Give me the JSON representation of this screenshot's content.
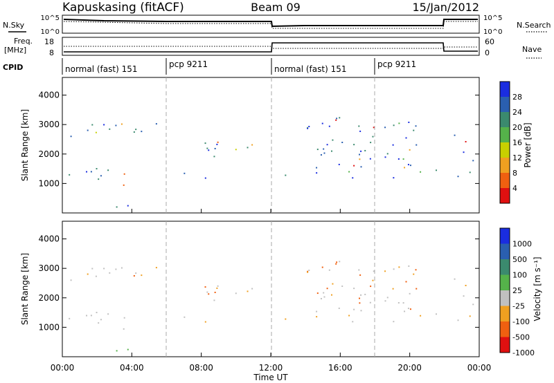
{
  "header": {
    "radar": "Kapuskasing (fitACF)",
    "beam": "Beam 09",
    "date": "15/Jan/2012"
  },
  "panels": {
    "nsky_label": "N.Sky",
    "nsearch_label": "N.Search",
    "freq_label_1": "Freq.",
    "freq_label_2": "[MHz]",
    "nave_label": "Nave",
    "cpid_label": "CPID",
    "sky_ticks": [
      "10^5",
      "10^0"
    ],
    "freq_ticks": [
      "18",
      "8"
    ],
    "nave_ticks": [
      "60",
      "0"
    ]
  },
  "chart_data": [
    {
      "type": "table",
      "title": "CPID",
      "x": [
        "00:00",
        "06:00",
        "12:00",
        "18:00"
      ],
      "labels": [
        "normal (fast) 151",
        "pcp 9211",
        "normal (fast) 151",
        "pcp 9211"
      ]
    },
    {
      "type": "heatmap",
      "ylabel": "Slant Range [km]",
      "xlabel": "Time UT",
      "xlim": [
        "00:00",
        "24:00"
      ],
      "ylim": [
        0,
        4600
      ],
      "yticks": [
        "1000",
        "2000",
        "3000",
        "4000"
      ],
      "xticks": [
        "00:00",
        "04:00",
        "08:00",
        "12:00",
        "16:00",
        "20:00",
        "00:00"
      ],
      "colorbar_label": "Power [dB]",
      "colorbar_ticks": [
        "4",
        "8",
        "12",
        "16",
        "20",
        "24",
        "28"
      ],
      "colors": [
        "#1a2de0",
        "#2a5fb0",
        "#3b8a6e",
        "#55b24a",
        "#c8d000",
        "#f0a020",
        "#f06010",
        "#e01010"
      ]
    },
    {
      "type": "heatmap",
      "ylabel": "Slant Range [km]",
      "xlabel": "Time UT",
      "xlim": [
        "00:00",
        "24:00"
      ],
      "ylim": [
        0,
        4600
      ],
      "yticks": [
        "1000",
        "2000",
        "3000",
        "4000"
      ],
      "xticks": [
        "00:00",
        "04:00",
        "08:00",
        "12:00",
        "16:00",
        "20:00",
        "00:00"
      ],
      "colorbar_label": "Velocity [m s⁻¹]",
      "colorbar_ticks": [
        "1000",
        "500",
        "100",
        "25",
        "-25",
        "-100",
        "-500",
        "-1000"
      ],
      "colors": [
        "#1a2de0",
        "#2a5fb0",
        "#3b8a6e",
        "#55b24a",
        "#c0c0c0",
        "#f0a020",
        "#f06010",
        "#e01010"
      ]
    }
  ]
}
